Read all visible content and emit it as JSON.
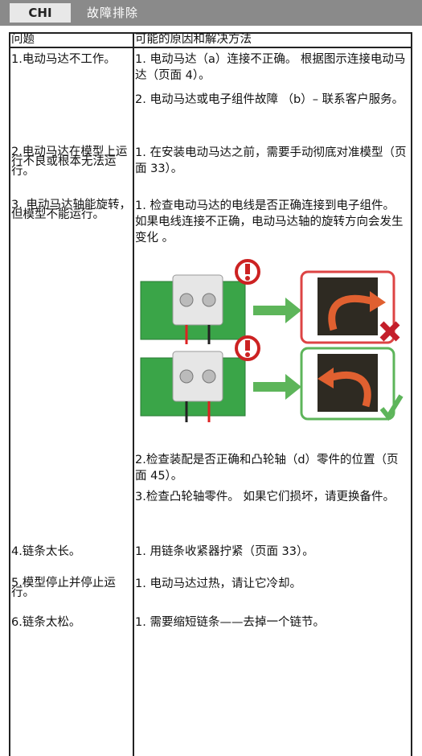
{
  "header": {
    "section": "CHI",
    "title": "故障排除"
  },
  "table": {
    "columns": [
      "问题",
      "可能的原因和解决方法"
    ],
    "rows": [
      {
        "problem": "1.电动马达不工作。",
        "solutions": [
          "1. 电动马达（a）连接不正确。 根据图示连接电动马达（页面 4）。",
          "2. 电动马达或电子组件故障 （b）– 联系客户服务。"
        ]
      },
      {
        "problem": "2.电动马达在模型上运行不良或根本无法运行。",
        "solutions": [
          "1. 在安装电动马达之前，需要手动彻底对准模型（页面 33）。"
        ]
      },
      {
        "problem": "3. 电动马达轴能旋转，但模型不能运行。",
        "solutions": [
          "1. 检查电动马达的电线是否正确连接到电子组件。 如果电线连接不正确，电动马达轴的旋转方向会发生变化 。",
          "2.检查装配是否正确和凸轮轴（d）零件的位置（页面 45）。",
          "3.检查凸轮轴零件。 如果它们损坏，请更换备件。"
        ]
      },
      {
        "problem": "4.链条太长。",
        "solutions": [
          "1. 用链条收紧器拧紧（页面 33）。"
        ]
      },
      {
        "problem": "5.模型停止并停止运行。",
        "solutions": [
          "1. 电动马达过热，请让它冷却。"
        ]
      },
      {
        "problem": "6.链条太松。",
        "solutions": [
          "1. 需要缩短链条——去掉一个链节。"
        ]
      }
    ]
  }
}
